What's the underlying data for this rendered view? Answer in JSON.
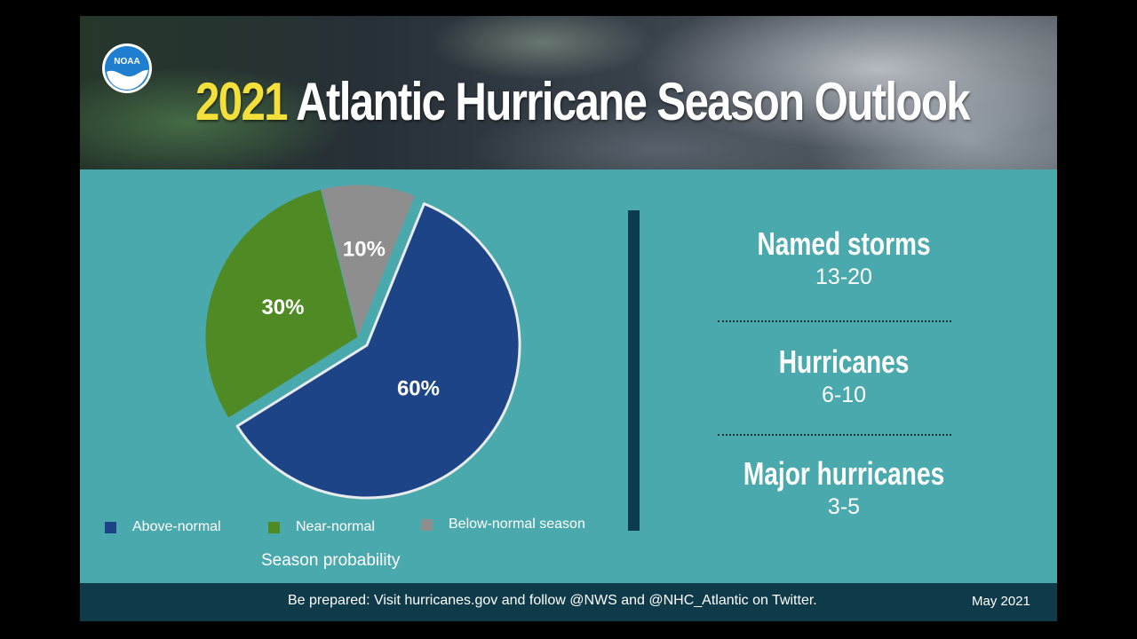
{
  "header": {
    "title_year": "2021",
    "title_rest": "Atlantic Hurricane Season Outlook",
    "logo_text": "NOAA"
  },
  "chart_data": {
    "type": "pie",
    "title": "2021 Atlantic Hurricane Season Outlook",
    "caption": "Season probability",
    "slices": [
      {
        "name": "Above-normal",
        "value": 60,
        "label": "60%",
        "color": "#1c4487"
      },
      {
        "name": "Near-normal",
        "value": 30,
        "label": "30%",
        "color": "#4f8a24"
      },
      {
        "name": "Below-normal season",
        "value": 10,
        "label": "10%",
        "color": "#8e8e8e"
      }
    ],
    "legend": [
      "Above-normal",
      "Near-normal",
      "Below-normal season"
    ]
  },
  "stats": [
    {
      "label": "Named storms",
      "value": "13-20"
    },
    {
      "label": "Hurricanes",
      "value": "6-10"
    },
    {
      "label": "Major hurricanes",
      "value": "3-5"
    }
  ],
  "footer": {
    "text": "Be prepared: Visit hurricanes.gov and follow @NWS and @NHC_Atlantic on Twitter.",
    "date": "May 2021"
  },
  "colors": {
    "background": "#4aa9ad",
    "footer": "#0e3a4a",
    "title_year": "#f4e03a",
    "divider": "#0c3b4e"
  }
}
